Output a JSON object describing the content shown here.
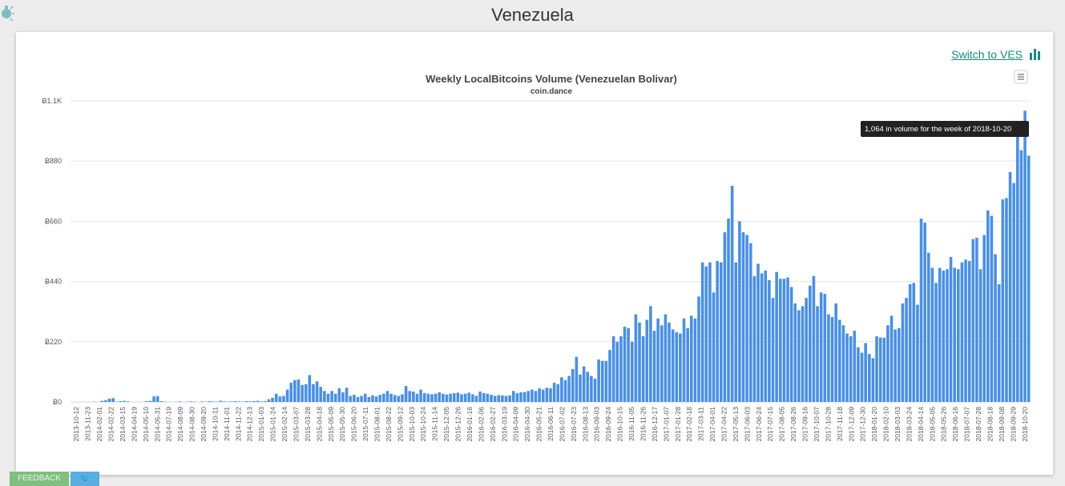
{
  "page": {
    "title": "Venezuela"
  },
  "toolbar": {
    "switch_label": "Switch to VES",
    "feedback_label": "FEEDBACK",
    "twitter_label": "🐦"
  },
  "colors": {
    "bar": "#4a90e2",
    "grid": "#e6e6e6",
    "accent": "#1a8a7a",
    "tooltip_bg": "#222222"
  },
  "icons": {
    "menu": "hamburger-menu-icon",
    "switch": "bar-chart-icon",
    "logo": "lightbulb-icon"
  },
  "chart_data": {
    "type": "bar",
    "title": "Weekly LocalBitcoins Volume (Venezuelan Bolivar)",
    "subtitle": "coin.dance",
    "y_ticks": [
      "Ƀ0",
      "Ƀ220",
      "Ƀ440",
      "Ƀ660",
      "Ƀ880",
      "Ƀ1.1K"
    ],
    "ylim": [
      0,
      1100
    ],
    "x_tick_labels": [
      "2013-10-12",
      "2013-11-23",
      "2014-02-01",
      "2014-02-22",
      "2014-03-15",
      "2014-04-19",
      "2014-05-10",
      "2014-05-31",
      "2014-07-19",
      "2014-08-09",
      "2014-08-30",
      "2014-09-20",
      "2014-10-11",
      "2014-11-01",
      "2014-11-22",
      "2014-12-13",
      "2015-01-03",
      "2015-01-24",
      "2015-02-14",
      "2015-03-07",
      "2015-03-28",
      "2015-04-18",
      "2015-05-09",
      "2015-05-30",
      "2015-06-20",
      "2015-07-11",
      "2015-08-01",
      "2015-08-22",
      "2015-09-12",
      "2015-10-03",
      "2015-10-24",
      "2015-11-14",
      "2015-12-05",
      "2015-12-26",
      "2016-01-16",
      "2016-02-06",
      "2016-02-27",
      "2016-03-19",
      "2016-04-09",
      "2016-04-30",
      "2016-05-21",
      "2016-06-11",
      "2016-07-02",
      "2016-07-23",
      "2016-08-13",
      "2016-09-03",
      "2016-09-24",
      "2016-10-15",
      "2016-11-05",
      "2016-11-26",
      "2016-12-17",
      "2017-01-07",
      "2017-01-28",
      "2017-02-18",
      "2017-03-11",
      "2017-04-01",
      "2017-04-22",
      "2017-05-13",
      "2017-06-03",
      "2017-06-24",
      "2017-07-15",
      "2017-08-05",
      "2017-08-26",
      "2017-09-16",
      "2017-10-07",
      "2017-10-28",
      "2017-11-18",
      "2017-12-09",
      "2017-12-30",
      "2018-01-20",
      "2018-02-10",
      "2018-03-03",
      "2018-03-24",
      "2018-04-14",
      "2018-05-05",
      "2018-05-26",
      "2018-06-16",
      "2018-07-07",
      "2018-07-28",
      "2018-08-18",
      "2018-09-08",
      "2018-09-29",
      "2018-10-20"
    ],
    "values": [
      0,
      0,
      0,
      0,
      0,
      0,
      1,
      0,
      4,
      6,
      12,
      14,
      1,
      3,
      4,
      2,
      0,
      0,
      0,
      0,
      3,
      4,
      20,
      21,
      3,
      1,
      0,
      0,
      0,
      2,
      0,
      1,
      2,
      1,
      0,
      2,
      1,
      3,
      2,
      1,
      4,
      2,
      1,
      2,
      3,
      2,
      1,
      3,
      2,
      3,
      4,
      2,
      3,
      10,
      15,
      30,
      20,
      22,
      45,
      70,
      80,
      82,
      62,
      65,
      98,
      65,
      75,
      55,
      40,
      30,
      40,
      30,
      50,
      35,
      52,
      22,
      26,
      18,
      22,
      30,
      18,
      24,
      20,
      26,
      30,
      40,
      30,
      25,
      22,
      28,
      58,
      40,
      38,
      30,
      45,
      32,
      30,
      28,
      30,
      35,
      30,
      27,
      30,
      32,
      34,
      28,
      30,
      34,
      28,
      22,
      38,
      32,
      30,
      26,
      22,
      25,
      24,
      22,
      24,
      40,
      32,
      35,
      36,
      40,
      45,
      40,
      50,
      45,
      52,
      50,
      70,
      65,
      90,
      80,
      95,
      120,
      165,
      100,
      130,
      110,
      95,
      85,
      155,
      150,
      150,
      190,
      240,
      220,
      240,
      275,
      270,
      220,
      320,
      290,
      240,
      300,
      350,
      260,
      305,
      280,
      320,
      290,
      265,
      255,
      250,
      305,
      270,
      315,
      305,
      385,
      510,
      495,
      510,
      400,
      515,
      510,
      620,
      670,
      790,
      510,
      660,
      620,
      610,
      580,
      460,
      505,
      470,
      480,
      445,
      380,
      475,
      450,
      450,
      455,
      420,
      360,
      335,
      350,
      380,
      425,
      460,
      350,
      400,
      395,
      320,
      310,
      360,
      300,
      280,
      250,
      240,
      260,
      200,
      180,
      215,
      175,
      160,
      240,
      235,
      235,
      280,
      315,
      265,
      270,
      360,
      380,
      430,
      435,
      355,
      670,
      655,
      545,
      490,
      435,
      490,
      480,
      485,
      530,
      490,
      485,
      510,
      520,
      515,
      595,
      600,
      485,
      610,
      700,
      680,
      540,
      430,
      740,
      745,
      840,
      800,
      1000,
      920,
      1064,
      900
    ],
    "tooltip": "1,064 in volume for the week of 2018-10-20"
  }
}
